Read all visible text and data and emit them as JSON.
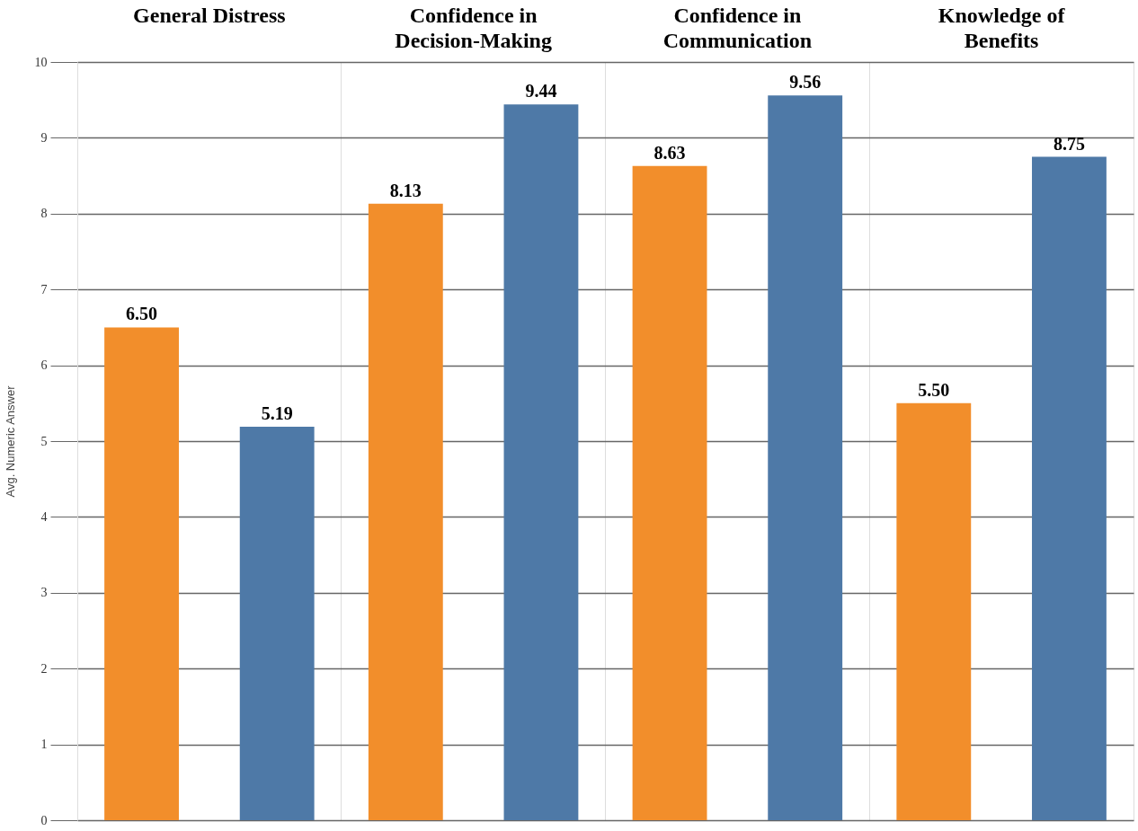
{
  "chart_data": {
    "type": "bar",
    "categories": [
      "General Distress",
      "Confidence in Decision-Making",
      "Confidence in Communication",
      "Knowledge of Benefits"
    ],
    "series": [
      {
        "color": "#f28e2b",
        "values": [
          6.5,
          8.13,
          8.63,
          5.5
        ],
        "value_labels": [
          "6.50",
          "8.13",
          "8.63",
          "5.50"
        ]
      },
      {
        "color": "#4e79a7",
        "values": [
          5.19,
          9.44,
          9.56,
          8.75
        ],
        "value_labels": [
          "5.19",
          "9.44",
          "9.56",
          "8.75"
        ]
      }
    ],
    "ylabel": "Avg. Numeric Answer",
    "ylim": [
      0,
      10
    ],
    "yticks": [
      0,
      1,
      2,
      3,
      4,
      5,
      6,
      7,
      8,
      9,
      10
    ],
    "grid": true,
    "legend": false
  }
}
